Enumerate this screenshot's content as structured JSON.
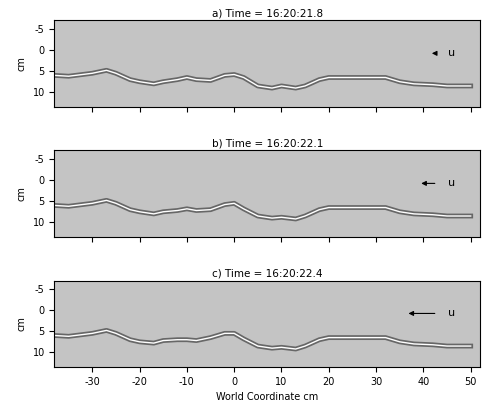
{
  "chart_data": [
    {
      "type": "line",
      "title": "a) Time = 16:20:21.8",
      "ylabel": "cm",
      "annotations": [
        "u"
      ],
      "x": [
        -38,
        -35,
        -30,
        -27,
        -25,
        -22,
        -20,
        -17,
        -15,
        -12,
        -10,
        -8,
        -5,
        -2,
        0,
        2,
        5,
        8,
        10,
        13,
        15,
        18,
        20,
        25,
        30,
        32,
        35,
        38,
        42,
        45,
        50
      ],
      "series": [
        {
          "name": null,
          "color": "#ffffff",
          "line_style": "solid",
          "values": [
            6.0,
            6.2,
            5.5,
            4.8,
            5.5,
            7.0,
            7.5,
            8.0,
            7.5,
            7.0,
            6.5,
            7.0,
            7.2,
            6.0,
            5.8,
            6.5,
            8.5,
            9.0,
            8.5,
            9.0,
            8.5,
            7.0,
            6.5,
            6.5,
            6.5,
            6.5,
            7.5,
            8.0,
            8.2,
            8.5,
            8.5
          ]
        }
      ],
      "xlim": [
        -38,
        52
      ],
      "ylim": [
        13.5,
        -7
      ],
      "xticks": [
        -30,
        -20,
        -10,
        0,
        10,
        20,
        30,
        40,
        50
      ],
      "yticks": [
        -5,
        0,
        5,
        10
      ],
      "tick_labels": "y"
    },
    {
      "type": "line",
      "title": "b) Time = 16:20:22.1",
      "ylabel": "cm",
      "annotations": [
        "u"
      ],
      "x": [
        -38,
        -35,
        -30,
        -27,
        -25,
        -22,
        -20,
        -17,
        -15,
        -12,
        -10,
        -8,
        -5,
        -2,
        0,
        2,
        5,
        8,
        10,
        13,
        15,
        18,
        20,
        25,
        30,
        32,
        35,
        38,
        42,
        45,
        50
      ],
      "series": [
        {
          "name": null,
          "color": "#ffffff",
          "line_style": "solid",
          "values": [
            6.0,
            6.2,
            5.5,
            4.8,
            5.5,
            7.0,
            7.5,
            8.0,
            7.5,
            7.2,
            6.8,
            7.2,
            7.0,
            5.8,
            5.5,
            6.8,
            8.5,
            9.0,
            8.8,
            9.2,
            8.5,
            7.0,
            6.5,
            6.5,
            6.5,
            6.5,
            7.5,
            8.0,
            8.2,
            8.5,
            8.5
          ]
        }
      ],
      "xlim": [
        -38,
        52
      ],
      "ylim": [
        13.5,
        -7
      ],
      "xticks": [
        -30,
        -20,
        -10,
        0,
        10,
        20,
        30,
        40,
        50
      ],
      "yticks": [
        -5,
        0,
        5,
        10
      ],
      "tick_labels": "y"
    },
    {
      "type": "line",
      "title": "c) Time = 16:20:22.4",
      "ylabel": "cm",
      "xlabel": "World Coordinate cm",
      "annotations": [
        "u"
      ],
      "x": [
        -38,
        -35,
        -30,
        -27,
        -25,
        -22,
        -20,
        -17,
        -15,
        -12,
        -10,
        -8,
        -5,
        -2,
        0,
        2,
        5,
        8,
        10,
        13,
        15,
        18,
        20,
        25,
        30,
        32,
        35,
        38,
        42,
        45,
        50
      ],
      "series": [
        {
          "name": null,
          "color": "#ffffff",
          "line_style": "solid",
          "values": [
            6.0,
            6.2,
            5.5,
            4.8,
            5.5,
            7.0,
            7.5,
            7.8,
            7.2,
            7.0,
            7.0,
            7.2,
            6.5,
            5.5,
            5.5,
            6.8,
            8.5,
            9.0,
            8.8,
            9.2,
            8.5,
            7.0,
            6.5,
            6.5,
            6.5,
            6.5,
            7.5,
            8.0,
            8.2,
            8.5,
            8.5
          ]
        }
      ],
      "xlim": [
        -38,
        52
      ],
      "ylim": [
        13.5,
        -7
      ],
      "xticks": [
        -30,
        -20,
        -10,
        0,
        10,
        20,
        30,
        40,
        50
      ],
      "yticks": [
        -5,
        0,
        5,
        10
      ],
      "tick_labels": true
    }
  ]
}
